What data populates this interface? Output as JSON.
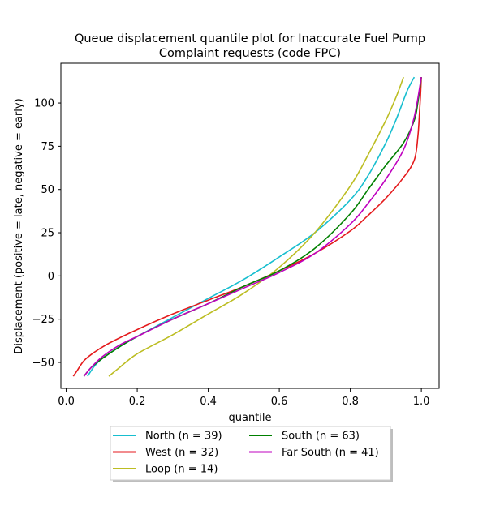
{
  "chart_data": {
    "type": "line",
    "title_lines": [
      "Queue displacement quantile plot for Inaccurate Fuel Pump",
      "Complaint  requests (code FPC)"
    ],
    "xlabel": "quantile",
    "ylabel": "Displacement (positive = late, negative = early)",
    "xlim": [
      -0.015,
      1.05
    ],
    "ylim": [
      -65,
      123
    ],
    "xticks": [
      0.0,
      0.2,
      0.4,
      0.6,
      0.8,
      1.0
    ],
    "xtick_labels": [
      "0.0",
      "0.2",
      "0.4",
      "0.6",
      "0.8",
      "1.0"
    ],
    "yticks": [
      -50,
      -25,
      0,
      25,
      50,
      75,
      100
    ],
    "ytick_labels": [
      "−50",
      "−25",
      "0",
      "25",
      "50",
      "75",
      "100"
    ],
    "grid": false,
    "legend_position": "below-center",
    "series": [
      {
        "name": "North (n = 39)",
        "color": "#17becf",
        "x": [
          0.06,
          0.08,
          0.1,
          0.15,
          0.2,
          0.3,
          0.4,
          0.5,
          0.6,
          0.7,
          0.8,
          0.85,
          0.9,
          0.93,
          0.96,
          0.98
        ],
        "y": [
          -58,
          -52,
          -48,
          -41,
          -35,
          -24,
          -13,
          -2,
          11,
          25,
          44,
          58,
          77,
          91,
          107,
          115
        ]
      },
      {
        "name": "West (n = 32)",
        "color": "#e41a1c",
        "x": [
          0.02,
          0.03,
          0.05,
          0.08,
          0.12,
          0.2,
          0.3,
          0.4,
          0.5,
          0.6,
          0.7,
          0.8,
          0.85,
          0.9,
          0.95,
          0.98,
          0.99,
          0.995,
          1.0
        ],
        "y": [
          -58,
          -55,
          -49,
          -44,
          -39,
          -31,
          -22,
          -14,
          -6,
          3,
          13,
          26,
          35,
          45,
          57,
          67,
          80,
          95,
          115
        ]
      },
      {
        "name": "Loop (n = 14)",
        "color": "#bcbd22",
        "x": [
          0.12,
          0.15,
          0.2,
          0.3,
          0.4,
          0.5,
          0.6,
          0.7,
          0.8,
          0.85,
          0.9,
          0.93,
          0.95
        ],
        "y": [
          -58,
          -53,
          -45,
          -34,
          -22,
          -10,
          5,
          25,
          52,
          70,
          90,
          104,
          115
        ]
      },
      {
        "name": "South (n = 63)",
        "color": "#008000",
        "x": [
          0.05,
          0.07,
          0.1,
          0.15,
          0.2,
          0.3,
          0.4,
          0.5,
          0.6,
          0.7,
          0.8,
          0.85,
          0.9,
          0.95,
          0.98,
          0.99,
          1.0
        ],
        "y": [
          -58,
          -53,
          -48,
          -41,
          -35,
          -25,
          -16,
          -6,
          3,
          16,
          36,
          50,
          64,
          77,
          90,
          100,
          115
        ]
      },
      {
        "name": "Far South (n = 41)",
        "color": "#bf00bf",
        "x": [
          0.05,
          0.07,
          0.1,
          0.15,
          0.2,
          0.3,
          0.4,
          0.5,
          0.6,
          0.7,
          0.8,
          0.85,
          0.9,
          0.95,
          0.98,
          1.0
        ],
        "y": [
          -58,
          -53,
          -47,
          -40,
          -35,
          -25,
          -16,
          -7,
          2,
          13,
          30,
          42,
          56,
          73,
          92,
          115
        ]
      }
    ]
  }
}
